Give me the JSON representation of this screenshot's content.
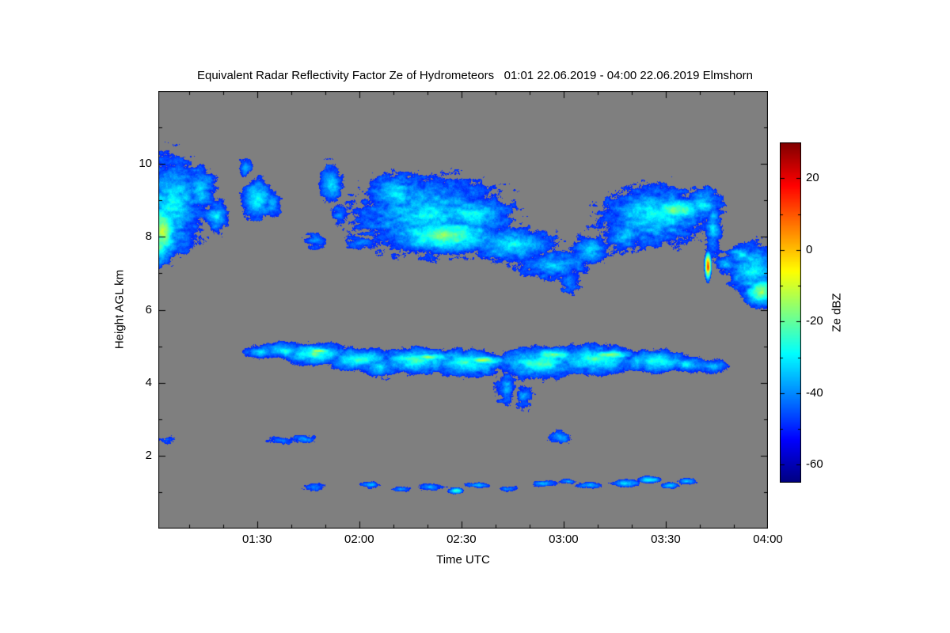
{
  "title": "Equivalent Radar Reflectivity Factor Ze of Hydrometeors   01:01 22.06.2019 - 04:00 22.06.2019 Elmshorn",
  "colors": {
    "figure_background": "#ffffff",
    "plot_background": "#7f7f7f",
    "axis": "#000000"
  },
  "colorbar": {
    "label": "Ze dBZ"
  },
  "chart_data": {
    "type": "heatmap",
    "title": "Equivalent Radar Reflectivity Factor Ze of Hydrometeors",
    "time_start": "01:01 22.06.2019",
    "time_end": "04:00 22.06.2019",
    "station": "Elmshorn",
    "x": {
      "label": "Time UTC",
      "range_hours": [
        1.0167,
        4.0
      ],
      "ticks": [
        {
          "value": 1.5,
          "label": "01:30"
        },
        {
          "value": 2.0,
          "label": "02:00"
        },
        {
          "value": 2.5,
          "label": "02:30"
        },
        {
          "value": 3.0,
          "label": "03:00"
        },
        {
          "value": 3.5,
          "label": "03:30"
        },
        {
          "value": 4.0,
          "label": "04:00"
        }
      ]
    },
    "y": {
      "label": "Height AGL km",
      "range_km": [
        0,
        12
      ],
      "ticks": [
        {
          "value": 2,
          "label": "2"
        },
        {
          "value": 4,
          "label": "4"
        },
        {
          "value": 6,
          "label": "6"
        },
        {
          "value": 8,
          "label": "8"
        },
        {
          "value": 10,
          "label": "10"
        }
      ]
    },
    "value": {
      "label": "Ze dBZ",
      "range": [
        -65,
        30
      ],
      "ticks": [
        {
          "value": 20,
          "label": "20"
        },
        {
          "value": 0,
          "label": "0"
        },
        {
          "value": -20,
          "label": "-20"
        },
        {
          "value": -40,
          "label": "-40"
        },
        {
          "value": -60,
          "label": "-60"
        }
      ]
    },
    "colormap_stops": [
      {
        "value": -65,
        "color": "#000080"
      },
      {
        "value": -53,
        "color": "#0000ff"
      },
      {
        "value": -29,
        "color": "#00ffff"
      },
      {
        "value": -6,
        "color": "#ffff00"
      },
      {
        "value": 18,
        "color": "#ff0000"
      },
      {
        "value": 30,
        "color": "#800000"
      }
    ],
    "no_echo": "gray background",
    "cloud_features_format": [
      "time_utc_hours",
      "height_km",
      "radius_time_hours",
      "radius_height_km",
      "core_dBZ",
      "edge_dBZ"
    ],
    "cloud_features": [
      [
        1.03,
        8.2,
        0.1,
        0.95,
        -10,
        -50
      ],
      [
        1.08,
        8.9,
        0.17,
        1.4,
        -28,
        -50
      ],
      [
        1.02,
        7.7,
        0.08,
        0.5,
        -18,
        -50
      ],
      [
        1.22,
        9.3,
        0.08,
        0.7,
        -32,
        -50
      ],
      [
        1.3,
        8.55,
        0.06,
        0.45,
        -30,
        -50
      ],
      [
        1.44,
        9.9,
        0.03,
        0.18,
        -36,
        -48
      ],
      [
        1.5,
        9.05,
        0.07,
        0.55,
        -26,
        -48
      ],
      [
        1.57,
        8.9,
        0.04,
        0.3,
        -34,
        -48
      ],
      [
        1.78,
        7.9,
        0.04,
        0.15,
        -40,
        -48
      ],
      [
        1.86,
        9.5,
        0.05,
        0.5,
        -30,
        -48
      ],
      [
        1.9,
        8.6,
        0.03,
        0.2,
        -40,
        -48
      ],
      [
        2.0,
        7.85,
        0.06,
        0.13,
        -38,
        -48
      ],
      [
        2.35,
        8.6,
        0.38,
        1.1,
        -30,
        -50
      ],
      [
        2.18,
        9.2,
        0.15,
        0.6,
        -30,
        -50
      ],
      [
        2.42,
        8.05,
        0.3,
        0.55,
        -14,
        -50
      ],
      [
        2.55,
        8.6,
        0.2,
        0.6,
        -26,
        -50
      ],
      [
        2.75,
        7.8,
        0.22,
        0.5,
        -28,
        -50
      ],
      [
        2.95,
        7.25,
        0.17,
        0.4,
        -32,
        -50
      ],
      [
        3.03,
        6.8,
        0.05,
        0.35,
        -38,
        -50
      ],
      [
        3.13,
        7.65,
        0.08,
        0.35,
        -32,
        -48
      ],
      [
        3.45,
        8.6,
        0.28,
        0.85,
        -28,
        -50
      ],
      [
        3.55,
        8.75,
        0.17,
        0.4,
        -18,
        -50
      ],
      [
        3.3,
        8.05,
        0.1,
        0.45,
        -32,
        -50
      ],
      [
        3.68,
        8.9,
        0.1,
        0.5,
        -30,
        -50
      ],
      [
        3.73,
        8.3,
        0.04,
        1.0,
        -34,
        -50
      ],
      [
        3.705,
        7.2,
        0.013,
        0.3,
        20,
        -25
      ],
      [
        3.93,
        7.1,
        0.13,
        0.8,
        -26,
        -50
      ],
      [
        3.97,
        6.5,
        0.1,
        0.45,
        -11,
        -50
      ],
      [
        3.87,
        7.5,
        0.08,
        0.35,
        -30,
        -50
      ],
      [
        3.79,
        7.25,
        0.05,
        0.25,
        -36,
        -48
      ],
      [
        1.52,
        4.85,
        0.07,
        0.18,
        -32,
        -48
      ],
      [
        1.63,
        4.9,
        0.1,
        0.22,
        -26,
        -48
      ],
      [
        1.78,
        4.8,
        0.18,
        0.3,
        -20,
        -50
      ],
      [
        1.8,
        4.88,
        0.1,
        0.12,
        -13,
        -50
      ],
      [
        2.0,
        4.65,
        0.18,
        0.33,
        -24,
        -50
      ],
      [
        2.1,
        4.45,
        0.1,
        0.3,
        -32,
        -50
      ],
      [
        2.28,
        4.62,
        0.22,
        0.38,
        -22,
        -50
      ],
      [
        2.33,
        4.72,
        0.13,
        0.14,
        -13,
        -50
      ],
      [
        2.52,
        4.55,
        0.2,
        0.4,
        -22,
        -50
      ],
      [
        2.6,
        4.62,
        0.13,
        0.16,
        -12,
        -50
      ],
      [
        2.72,
        3.9,
        0.05,
        0.45,
        -38,
        -50
      ],
      [
        2.8,
        3.65,
        0.04,
        0.3,
        -40,
        -50
      ],
      [
        2.88,
        4.55,
        0.22,
        0.45,
        -22,
        -50
      ],
      [
        2.95,
        4.78,
        0.12,
        0.2,
        -14,
        -50
      ],
      [
        3.15,
        4.65,
        0.22,
        0.42,
        -22,
        -50
      ],
      [
        3.22,
        4.78,
        0.13,
        0.17,
        -13,
        -50
      ],
      [
        3.45,
        4.6,
        0.18,
        0.33,
        -24,
        -50
      ],
      [
        3.6,
        4.5,
        0.1,
        0.22,
        -30,
        -50
      ],
      [
        3.72,
        4.45,
        0.08,
        0.18,
        -34,
        -50
      ],
      [
        1.06,
        2.45,
        0.03,
        0.08,
        -40,
        -48
      ],
      [
        1.62,
        2.42,
        0.05,
        0.09,
        -38,
        -48
      ],
      [
        1.73,
        2.47,
        0.04,
        0.08,
        -40,
        -48
      ],
      [
        2.98,
        2.52,
        0.05,
        0.16,
        -34,
        -48
      ],
      [
        1.78,
        1.15,
        0.04,
        0.08,
        -38,
        -48
      ],
      [
        2.05,
        1.2,
        0.05,
        0.07,
        -36,
        -48
      ],
      [
        2.2,
        1.1,
        0.04,
        0.06,
        -38,
        -48
      ],
      [
        2.35,
        1.15,
        0.05,
        0.07,
        -36,
        -48
      ],
      [
        2.47,
        1.05,
        0.04,
        0.08,
        -20,
        -48
      ],
      [
        2.58,
        1.2,
        0.05,
        0.06,
        -36,
        -48
      ],
      [
        2.72,
        1.1,
        0.04,
        0.06,
        -38,
        -48
      ],
      [
        2.9,
        1.25,
        0.05,
        0.07,
        -36,
        -48
      ],
      [
        3.02,
        1.3,
        0.04,
        0.06,
        -34,
        -48
      ],
      [
        3.12,
        1.2,
        0.05,
        0.07,
        -36,
        -48
      ],
      [
        3.3,
        1.25,
        0.06,
        0.09,
        -30,
        -48
      ],
      [
        3.42,
        1.35,
        0.05,
        0.1,
        -22,
        -48
      ],
      [
        3.52,
        1.2,
        0.04,
        0.07,
        -34,
        -48
      ],
      [
        3.6,
        1.3,
        0.04,
        0.08,
        -32,
        -48
      ]
    ]
  }
}
